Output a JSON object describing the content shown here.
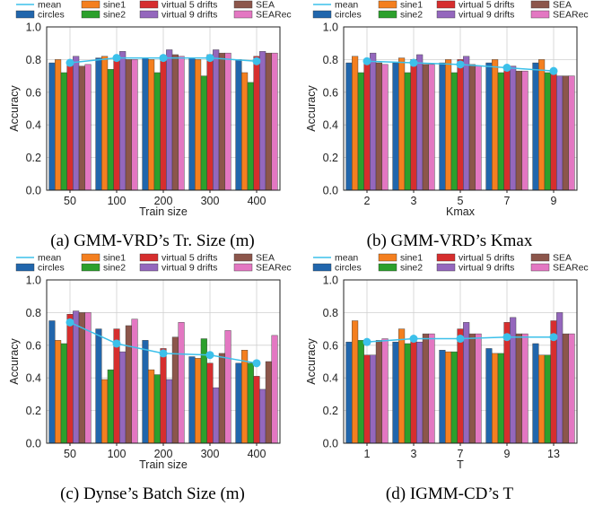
{
  "legend_entries": [
    {
      "name": "mean",
      "color": "#3cc0ea",
      "kind": "line"
    },
    {
      "name": "sine1",
      "color": "#f47f1f",
      "kind": "bar"
    },
    {
      "name": "virtual 5 drifts",
      "color": "#d62e2e",
      "kind": "bar"
    },
    {
      "name": "SEA",
      "color": "#8c564b",
      "kind": "bar"
    },
    {
      "name": "circles",
      "color": "#2166ac",
      "kind": "bar"
    },
    {
      "name": "sine2",
      "color": "#2ca02c",
      "kind": "bar"
    },
    {
      "name": "virtual 9 drifts",
      "color": "#9467bd",
      "kind": "bar"
    },
    {
      "name": "SEARec",
      "color": "#e377c2",
      "kind": "bar"
    }
  ],
  "series_order": [
    "circles",
    "sine1",
    "sine2",
    "virtual 5 drifts",
    "virtual 9 drifts",
    "SEA",
    "SEARec"
  ],
  "chart_data": [
    {
      "type": "bar",
      "panel": "a",
      "caption": "(a) GMM-VRD’s Tr. Size (m)",
      "xlabel": "Train size",
      "ylabel": "Accuracy",
      "ylim": [
        0,
        1
      ],
      "yticks": [
        "0.0",
        "0.2",
        "0.4",
        "0.6",
        "0.8",
        "1.0"
      ],
      "grid": true,
      "categories": [
        "50",
        "100",
        "200",
        "300",
        "400"
      ],
      "series": [
        {
          "name": "circles",
          "values": [
            0.78,
            0.81,
            0.81,
            0.81,
            0.8
          ]
        },
        {
          "name": "sine1",
          "values": [
            0.8,
            0.82,
            0.8,
            0.8,
            0.72
          ]
        },
        {
          "name": "sine2",
          "values": [
            0.72,
            0.74,
            0.72,
            0.7,
            0.66
          ]
        },
        {
          "name": "virtual 5 drifts",
          "values": [
            0.79,
            0.82,
            0.82,
            0.83,
            0.82
          ]
        },
        {
          "name": "virtual 9 drifts",
          "values": [
            0.82,
            0.85,
            0.86,
            0.86,
            0.85
          ]
        },
        {
          "name": "SEA",
          "values": [
            0.76,
            0.8,
            0.83,
            0.84,
            0.84
          ]
        },
        {
          "name": "SEARec",
          "values": [
            0.77,
            0.8,
            0.82,
            0.84,
            0.84
          ]
        }
      ],
      "mean": [
        0.78,
        0.81,
        0.81,
        0.81,
        0.79
      ]
    },
    {
      "type": "bar",
      "panel": "b",
      "caption": "(b) GMM-VRD’s Kmax",
      "xlabel": "Kmax",
      "ylabel": "Accuracy",
      "ylim": [
        0,
        1
      ],
      "yticks": [
        "0.0",
        "0.2",
        "0.4",
        "0.6",
        "0.8",
        "1.0"
      ],
      "grid": true,
      "categories": [
        "2",
        "3",
        "5",
        "7",
        "9"
      ],
      "series": [
        {
          "name": "circles",
          "values": [
            0.78,
            0.78,
            0.78,
            0.78,
            0.78
          ]
        },
        {
          "name": "sine1",
          "values": [
            0.82,
            0.81,
            0.8,
            0.8,
            0.8
          ]
        },
        {
          "name": "sine2",
          "values": [
            0.72,
            0.72,
            0.72,
            0.72,
            0.72
          ]
        },
        {
          "name": "virtual 5 drifts",
          "values": [
            0.79,
            0.8,
            0.8,
            0.76,
            0.72
          ]
        },
        {
          "name": "virtual 9 drifts",
          "values": [
            0.84,
            0.83,
            0.82,
            0.76,
            0.7
          ]
        },
        {
          "name": "SEA",
          "values": [
            0.78,
            0.77,
            0.77,
            0.73,
            0.7
          ]
        },
        {
          "name": "SEARec",
          "values": [
            0.77,
            0.77,
            0.76,
            0.73,
            0.7
          ]
        }
      ],
      "mean": [
        0.79,
        0.78,
        0.77,
        0.75,
        0.73
      ]
    },
    {
      "type": "bar",
      "panel": "c",
      "caption": "(c) Dynse’s Batch Size (m)",
      "xlabel": "Train size",
      "ylabel": "Accuracy",
      "ylim": [
        0,
        1
      ],
      "yticks": [
        "0.0",
        "0.2",
        "0.4",
        "0.6",
        "0.8",
        "1.0"
      ],
      "grid": true,
      "categories": [
        "50",
        "100",
        "200",
        "300",
        "400"
      ],
      "series": [
        {
          "name": "circles",
          "values": [
            0.75,
            0.7,
            0.63,
            0.53,
            0.49
          ]
        },
        {
          "name": "sine1",
          "values": [
            0.63,
            0.39,
            0.45,
            0.52,
            0.57
          ]
        },
        {
          "name": "sine2",
          "values": [
            0.61,
            0.45,
            0.42,
            0.64,
            0.49
          ]
        },
        {
          "name": "virtual 5 drifts",
          "values": [
            0.79,
            0.7,
            0.58,
            0.49,
            0.41
          ]
        },
        {
          "name": "virtual 9 drifts",
          "values": [
            0.81,
            0.56,
            0.39,
            0.34,
            0.33
          ]
        },
        {
          "name": "SEA",
          "values": [
            0.8,
            0.72,
            0.65,
            0.55,
            0.5
          ]
        },
        {
          "name": "SEARec",
          "values": [
            0.8,
            0.76,
            0.74,
            0.69,
            0.66
          ]
        }
      ],
      "mean": [
        0.74,
        0.61,
        0.55,
        0.54,
        0.49
      ]
    },
    {
      "type": "bar",
      "panel": "d",
      "caption": "(d) IGMM-CD’s T",
      "xlabel": "T",
      "ylabel": "Accuracy",
      "ylim": [
        0,
        1
      ],
      "yticks": [
        "0.0",
        "0.2",
        "0.4",
        "0.6",
        "0.8",
        "1.0"
      ],
      "grid": true,
      "categories": [
        "1",
        "3",
        "7",
        "9",
        "13"
      ],
      "series": [
        {
          "name": "circles",
          "values": [
            0.62,
            0.62,
            0.57,
            0.58,
            0.61
          ]
        },
        {
          "name": "sine1",
          "values": [
            0.75,
            0.7,
            0.56,
            0.55,
            0.54
          ]
        },
        {
          "name": "sine2",
          "values": [
            0.63,
            0.61,
            0.56,
            0.55,
            0.54
          ]
        },
        {
          "name": "virtual 5 drifts",
          "values": [
            0.54,
            0.63,
            0.7,
            0.74,
            0.75
          ]
        },
        {
          "name": "virtual 9 drifts",
          "values": [
            0.54,
            0.62,
            0.74,
            0.77,
            0.8
          ]
        },
        {
          "name": "SEA",
          "values": [
            0.63,
            0.67,
            0.67,
            0.67,
            0.67
          ]
        },
        {
          "name": "SEARec",
          "values": [
            0.64,
            0.67,
            0.67,
            0.67,
            0.67
          ]
        }
      ],
      "mean": [
        0.62,
        0.64,
        0.64,
        0.65,
        0.65
      ]
    }
  ]
}
